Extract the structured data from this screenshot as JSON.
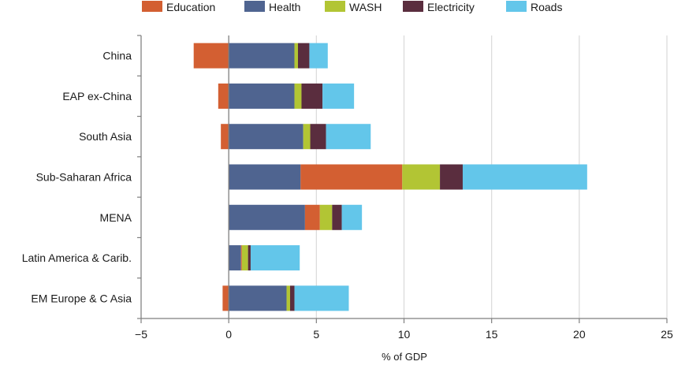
{
  "chart_data": {
    "type": "bar",
    "orientation": "horizontal",
    "stacked": true,
    "categories": [
      "China",
      "EAP ex-China",
      "South Asia",
      "Sub-Saharan Africa",
      "MENA",
      "Latin America & Carib.",
      "EM Europe & C Asia"
    ],
    "series": [
      {
        "name": "Education",
        "color": "#d35f32",
        "values": [
          -2.0,
          -0.6,
          -0.45,
          5.8,
          0.85,
          0.05,
          -0.35
        ]
      },
      {
        "name": "Health",
        "color": "#4f6490",
        "values": [
          3.75,
          3.75,
          4.25,
          4.1,
          4.35,
          0.7,
          3.3
        ]
      },
      {
        "name": "WASH",
        "color": "#b2c534",
        "values": [
          0.2,
          0.4,
          0.4,
          2.15,
          0.7,
          0.35,
          0.2
        ]
      },
      {
        "name": "Electricity",
        "color": "#5a2d3e",
        "values": [
          0.65,
          1.2,
          0.9,
          1.3,
          0.55,
          0.15,
          0.25
        ]
      },
      {
        "name": "Roads",
        "color": "#63c6ea",
        "values": [
          1.05,
          1.8,
          2.55,
          7.1,
          1.15,
          2.8,
          3.1
        ]
      }
    ],
    "order": [
      [
        "Education",
        "Health",
        "WASH",
        "Electricity",
        "Roads"
      ],
      [
        "Education",
        "Health",
        "WASH",
        "Electricity",
        "Roads"
      ],
      [
        "Education",
        "Health",
        "WASH",
        "Electricity",
        "Roads"
      ],
      [
        "Health",
        "Education",
        "WASH",
        "Electricity",
        "Roads"
      ],
      [
        "Health",
        "Education",
        "WASH",
        "Electricity",
        "Roads"
      ],
      [
        "Health",
        "Education",
        "WASH",
        "Electricity",
        "Roads"
      ],
      [
        "Education",
        "Health",
        "WASH",
        "Electricity",
        "Roads"
      ]
    ],
    "xlabel": "% of GDP",
    "ylabel": "",
    "xlim": [
      -5,
      25
    ],
    "xticks": [
      -5,
      0,
      5,
      10,
      15,
      20,
      25
    ],
    "grid": "vertical",
    "legend": "top"
  }
}
